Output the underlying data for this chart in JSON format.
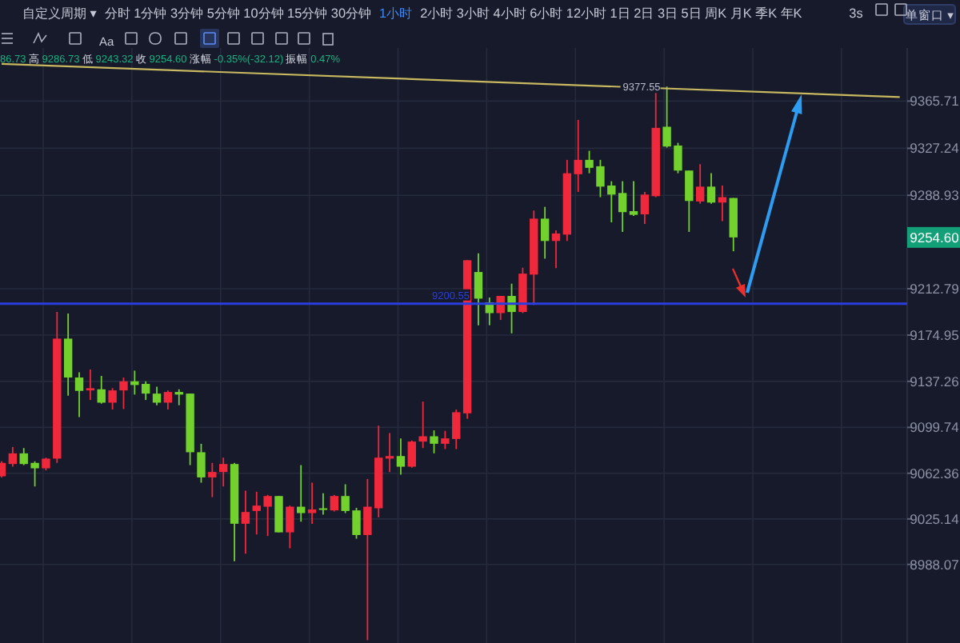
{
  "chart_data": {
    "type": "candlestick",
    "categories": [
      null,
      null,
      null,
      null,
      null,
      null,
      null,
      null,
      null,
      null,
      null,
      null,
      null,
      null,
      null,
      null,
      null,
      null,
      null,
      null,
      null,
      null,
      null,
      null,
      null,
      null,
      null,
      null,
      null,
      null,
      null,
      null,
      null,
      null,
      null,
      null,
      null,
      null,
      null,
      null,
      null,
      null,
      null,
      null,
      null,
      null,
      null,
      null,
      null,
      null,
      null,
      null,
      null,
      null,
      null,
      null,
      null,
      null,
      null,
      null,
      null,
      null,
      null,
      null,
      null,
      null,
      null,
      null,
      null,
      null,
      null,
      null,
      null,
      null,
      null,
      null,
      null,
      null,
      null,
      null,
      null,
      null
    ],
    "ohlc": [
      [
        9059.9,
        9072.1,
        9059.0,
        9070.8
      ],
      [
        9069.9,
        9083.8,
        9067.7,
        9078.6
      ],
      [
        9078.6,
        9082.9,
        9069.0,
        9069.9
      ],
      [
        9070.8,
        9072.1,
        9051.6,
        9066.4
      ],
      [
        9066.4,
        9075.1,
        9064.7,
        9074.3
      ],
      [
        9074.3,
        9193.9,
        9070.8,
        9172.1
      ],
      [
        9172.1,
        9192.6,
        9125.6,
        9140.4
      ],
      [
        9140.4,
        9144.7,
        9108.2,
        9129.5
      ],
      [
        9129.9,
        9146.9,
        9122.1,
        9131.7
      ],
      [
        9130.8,
        9141.7,
        9119.1,
        9119.9
      ],
      [
        9119.9,
        9131.7,
        9114.3,
        9129.9
      ],
      [
        9129.9,
        9140.4,
        9114.7,
        9137.3
      ],
      [
        9137.3,
        9146.0,
        9126.5,
        9134.3
      ],
      [
        9135.2,
        9137.3,
        9122.1,
        9127.3
      ],
      [
        9127.3,
        9133.0,
        9117.8,
        9119.9
      ],
      [
        9119.9,
        9129.9,
        9114.3,
        9128.6
      ],
      [
        9128.6,
        9130.8,
        9117.8,
        9126.5
      ],
      [
        9127.3,
        9127.3,
        9069.0,
        9079.5
      ],
      [
        9079.5,
        9086.4,
        9054.7,
        9059.0
      ],
      [
        9059.0,
        9070.8,
        9042.9,
        9063.4
      ],
      [
        9063.4,
        9075.1,
        9051.6,
        9069.9
      ],
      [
        9069.9,
        9070.8,
        8990.7,
        9021.2
      ],
      [
        9021.2,
        9048.2,
        8996.8,
        9030.8
      ],
      [
        9031.6,
        9047.3,
        9012.5,
        9036.0
      ],
      [
        9035.1,
        9044.7,
        9011.2,
        9043.8
      ],
      [
        9043.8,
        9043.8,
        9014.2,
        9014.2
      ],
      [
        9014.2,
        9036.0,
        9001.2,
        9035.1
      ],
      [
        9035.1,
        9069.0,
        9022.9,
        9029.9
      ],
      [
        9029.9,
        9054.7,
        9021.2,
        9032.9
      ],
      [
        9033.8,
        9046.0,
        9028.6,
        9032.5
      ],
      [
        9032.1,
        9044.7,
        9031.2,
        9043.8
      ],
      [
        9043.8,
        9053.4,
        9029.9,
        9031.6
      ],
      [
        9032.1,
        9034.2,
        9009.0,
        9012.0
      ],
      [
        9012.0,
        9057.7,
        8926.3,
        9035.1
      ],
      [
        9033.8,
        9101.2,
        9026.4,
        9075.1
      ],
      [
        9074.3,
        9095.1,
        9063.4,
        9076.4
      ],
      [
        9076.4,
        9090.8,
        9061.2,
        9067.7
      ],
      [
        9067.7,
        9089.0,
        9066.9,
        9088.2
      ],
      [
        9088.2,
        9120.8,
        9082.9,
        9092.5
      ],
      [
        9092.5,
        9097.3,
        9078.6,
        9086.4
      ],
      [
        9086.4,
        9096.9,
        9082.1,
        9090.8
      ],
      [
        9090.3,
        9114.3,
        9082.1,
        9112.1
      ],
      [
        9111.2,
        9236.0,
        9106.8,
        9236.0
      ],
      [
        9226.4,
        9241.7,
        9183.0,
        9204.7
      ],
      [
        9201.7,
        9205.6,
        9183.0,
        9192.9
      ],
      [
        9192.9,
        9206.9,
        9187.3,
        9206.9
      ],
      [
        9206.9,
        9216.9,
        9176.4,
        9193.8
      ],
      [
        9193.8,
        9229.9,
        9192.9,
        9225.1
      ],
      [
        9224.3,
        9276.5,
        9199.5,
        9269.9
      ],
      [
        9269.9,
        9279.5,
        9237.3,
        9251.7
      ],
      [
        9251.7,
        9260.4,
        9229.5,
        9257.8
      ],
      [
        9256.9,
        9317.8,
        9251.7,
        9306.9
      ],
      [
        9306.1,
        9350.4,
        9291.7,
        9317.8
      ],
      [
        9317.8,
        9325.2,
        9306.9,
        9311.3
      ],
      [
        9312.6,
        9317.8,
        9287.4,
        9296.0
      ],
      [
        9296.9,
        9300.4,
        9266.9,
        9289.5
      ],
      [
        9290.8,
        9300.4,
        9259.1,
        9275.2
      ],
      [
        9276.0,
        9300.4,
        9272.1,
        9273.0
      ],
      [
        9273.4,
        9291.7,
        9265.6,
        9289.5
      ],
      [
        9288.2,
        9374.4,
        9287.4,
        9343.9
      ],
      [
        9344.8,
        9377.55,
        9327.8,
        9328.7
      ],
      [
        9329.5,
        9331.7,
        9306.9,
        9309.1
      ],
      [
        9309.1,
        9309.1,
        9259.1,
        9284.3
      ],
      [
        9283.9,
        9314.3,
        9282.1,
        9296.0
      ],
      [
        9296.0,
        9306.9,
        9282.1,
        9283.0
      ],
      [
        9283.0,
        9296.9,
        9267.8,
        9287.4
      ],
      [
        9286.73,
        9286.73,
        9243.32,
        9254.6
      ],
      null,
      null,
      null,
      null,
      null,
      null,
      null,
      null,
      null,
      null,
      null,
      null,
      null,
      null,
      null
    ],
    "colors": [
      "#f0283c",
      "#f0283c",
      "#73d12e",
      "#73d12e",
      "#f0283c",
      "#f0283c",
      "#73d12e",
      "#73d12e",
      "#f0283c",
      "#73d12e",
      "#f0283c",
      "#f0283c",
      "#73d12e",
      "#73d12e",
      "#73d12e",
      "#f0283c",
      "#73d12e",
      "#73d12e",
      "#73d12e",
      "#f0283c",
      "#f0283c",
      "#73d12e",
      "#f0283c",
      "#f0283c",
      "#f0283c",
      "#73d12e",
      "#f0283c",
      "#73d12e",
      "#f0283c",
      "#73d12e",
      "#f0283c",
      "#73d12e",
      "#73d12e",
      "#f0283c",
      "#f0283c",
      "#f0283c",
      "#73d12e",
      "#f0283c",
      "#f0283c",
      "#73d12e",
      "#f0283c",
      "#f0283c",
      "#f0283c",
      "#73d12e",
      "#73d12e",
      "#f0283c",
      "#73d12e",
      "#f0283c",
      "#f0283c",
      "#73d12e",
      "#f0283c",
      "#f0283c",
      "#f0283c",
      "#73d12e",
      "#73d12e",
      "#73d12e",
      "#73d12e",
      "#73d12e",
      "#f0283c",
      "#f0283c",
      "#73d12e",
      "#73d12e",
      "#73d12e",
      "#f0283c",
      "#73d12e",
      "#f0283c",
      "#73d12e",
      null,
      null,
      null,
      null,
      null,
      null,
      null,
      null,
      null,
      null,
      null,
      null,
      null,
      null,
      null
    ],
    "series": [
      {
        "type": "line",
        "values": [
          9396,
          null,
          null,
          null,
          null,
          null,
          null,
          null,
          null,
          null,
          null,
          null,
          null,
          null,
          null,
          null,
          null,
          null,
          null,
          null,
          null,
          null,
          null,
          null,
          null,
          null,
          null,
          null,
          null,
          null,
          null,
          null,
          null,
          null,
          null,
          null,
          null,
          null,
          null,
          null,
          null,
          null,
          null,
          null,
          null,
          null,
          null,
          null,
          null,
          null,
          null,
          null,
          null,
          null,
          null,
          null,
          null,
          null,
          null,
          null,
          null,
          null,
          null,
          null,
          null,
          null,
          null,
          null,
          null,
          null,
          null,
          null,
          null,
          null,
          null,
          null,
          null,
          null,
          null,
          null,
          null,
          9369
        ],
        "color": "#c8b860"
      }
    ],
    "ylim": [
      8924,
      9409
    ],
    "yticks": [
      9365.71,
      9327.24,
      9288.93,
      9212.79,
      9174.95,
      9137.26,
      9099.74,
      9062.36,
      9025.14,
      8988.07
    ],
    "tick_labels": "y",
    "grid": true,
    "ref_lines": [
      {
        "axis": "y",
        "value": 9200.55,
        "label": "9200.55",
        "color": "#2a3ee0"
      }
    ],
    "annotations": [
      "自定义周期 ▾",
      "分时  1分钟  3分钟  5分钟  10分钟  15分钟  30分钟",
      "1小时",
      "2小时  3小时  4小时  6小时  12小时  1日  2日  3日  5日  周K  月K  季K  年K",
      "3s",
      "单窗口 ▾",
      "Aa",
      "86.73",
      "高",
      "9286.73",
      "低",
      "9243.32",
      "收",
      "9254.60",
      "涨幅",
      "-0.35%(-32.12)",
      "振幅",
      "0.47%",
      {
        "text": "9377.55",
        "y": 9377.55
      },
      {
        "text": "9254.60",
        "y": 9254.6
      }
    ]
  }
}
